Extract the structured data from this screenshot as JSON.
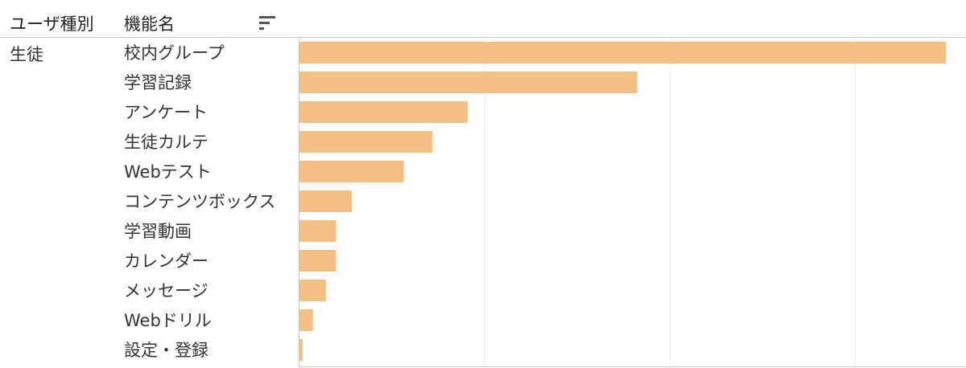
{
  "header": {
    "user_type_col": "ユーザ種別",
    "function_col": "機能名",
    "sort_icon": "sort-descending-icon"
  },
  "colors": {
    "bar": "#f5c083",
    "grid": "#ebebeb",
    "axis": "#c8c8c8"
  },
  "chart_data": {
    "type": "bar",
    "orientation": "horizontal",
    "group": "生徒",
    "categories": [
      "校内グループ",
      "学習記録",
      "アンケート",
      "生徒カルテ",
      "Webテスト",
      "コンテンツボックス",
      "学習動画",
      "カレンダー",
      "メッセージ",
      "Webドリル",
      "設定・登録"
    ],
    "values": [
      3490,
      1825,
      910,
      720,
      565,
      285,
      200,
      200,
      145,
      75,
      20
    ],
    "xlim": [
      0,
      3600
    ],
    "x_grid_values": [
      1000,
      2000,
      3000
    ],
    "grid": true,
    "title": "",
    "xlabel": "",
    "ylabel": ""
  }
}
